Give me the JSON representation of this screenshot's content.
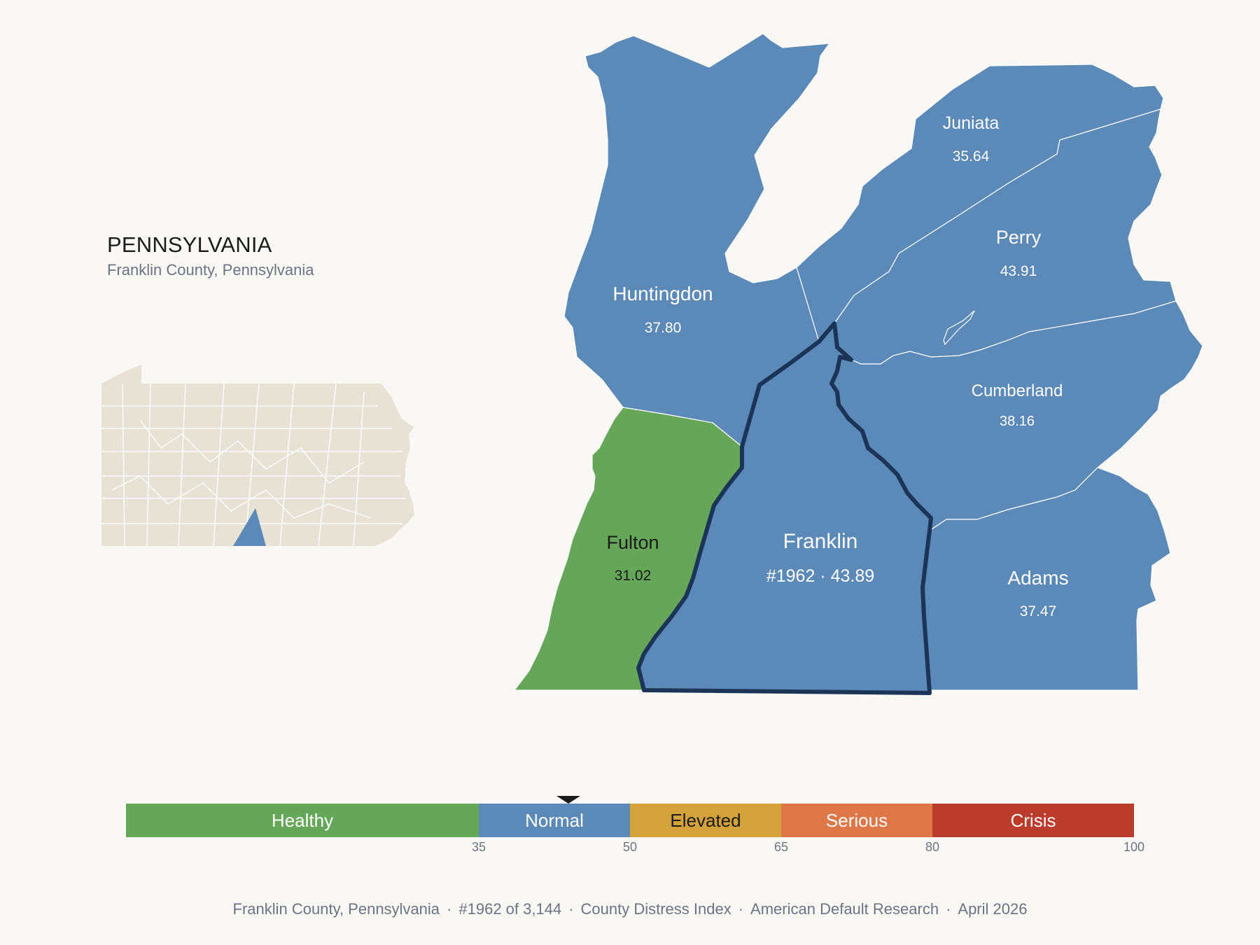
{
  "header": {
    "state_title": "PENNSYLVANIA",
    "subtitle": "Franklin County, Pennsylvania"
  },
  "colors": {
    "background": "#f9f8f5",
    "normal": "#5b89b8",
    "healthy": "#66a659",
    "elevated": "#d4a23a",
    "serious": "#de7748",
    "crisis": "#bb3b2c",
    "inset_fill": "#e8e2d6",
    "highlight_outline": "#1c3557"
  },
  "counties": [
    {
      "name": "Huntingdon",
      "value": "37.80",
      "category": "Normal"
    },
    {
      "name": "Juniata",
      "value": "35.64",
      "category": "Normal"
    },
    {
      "name": "Perry",
      "value": "43.91",
      "category": "Normal"
    },
    {
      "name": "Cumberland",
      "value": "38.16",
      "category": "Normal"
    },
    {
      "name": "Fulton",
      "value": "31.02",
      "category": "Healthy"
    },
    {
      "name": "Franklin",
      "value": "#1962 · 43.89",
      "category": "Normal",
      "highlighted": true
    },
    {
      "name": "Adams",
      "value": "37.47",
      "category": "Normal"
    }
  ],
  "legend": {
    "segments": [
      {
        "label": "Healthy",
        "from": 0,
        "to": 35,
        "color": "#66a659"
      },
      {
        "label": "Normal",
        "from": 35,
        "to": 50,
        "color": "#5b89b8"
      },
      {
        "label": "Elevated",
        "from": 50,
        "to": 65,
        "color": "#d4a23a"
      },
      {
        "label": "Serious",
        "from": 65,
        "to": 80,
        "color": "#de7748"
      },
      {
        "label": "Crisis",
        "from": 80,
        "to": 100,
        "color": "#bb3b2c"
      }
    ],
    "ticks": [
      "35",
      "50",
      "65",
      "80",
      "100"
    ],
    "marker_value": 43.89
  },
  "footer": {
    "county": "Franklin County, Pennsylvania",
    "rank": "#1962 of 3,144",
    "index": "County Distress Index",
    "source": "American Default Research",
    "date": "April 2026",
    "separator": "·"
  }
}
